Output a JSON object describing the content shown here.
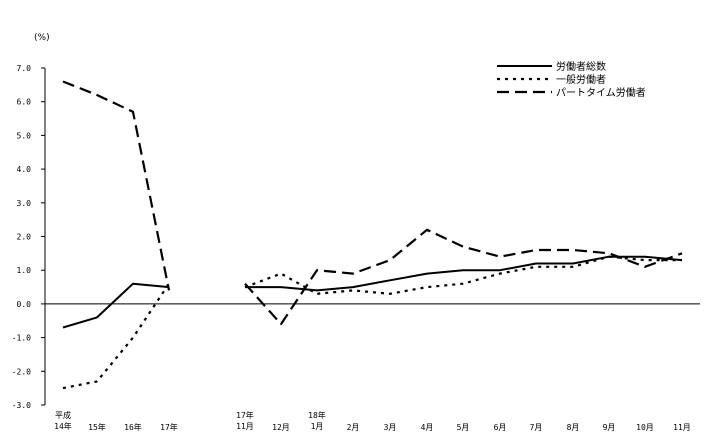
{
  "chart_data": {
    "type": "line",
    "title": "",
    "xlabel": "",
    "ylabel": "(%)",
    "ylim": [
      -3.0,
      7.0
    ],
    "y_ticks": [
      "7.0",
      "6.0",
      "5.0",
      "4.0",
      "3.0",
      "2.0",
      "1.0",
      "0.0",
      "-1.0",
      "-2.0",
      "-3.0"
    ],
    "legend_position": "top-right",
    "categories": [
      [
        "平成",
        "14年"
      ],
      [
        "15年"
      ],
      [
        "16年"
      ],
      [
        "17年"
      ],
      [
        "17年",
        "11月"
      ],
      [
        "12月"
      ],
      [
        "18年",
        "1月"
      ],
      [
        "2月"
      ],
      [
        "3月"
      ],
      [
        "4月"
      ],
      [
        "5月"
      ],
      [
        "6月"
      ],
      [
        "7月"
      ],
      [
        "8月"
      ],
      [
        "9月"
      ],
      [
        "10月"
      ],
      [
        "11月"
      ]
    ],
    "series": [
      {
        "name": "労働者総数",
        "style": "solid",
        "annual": [
          -0.7,
          -0.4,
          0.6,
          0.5
        ],
        "monthly": [
          0.5,
          0.5,
          0.4,
          0.5,
          0.7,
          0.9,
          1.0,
          1.0,
          1.2,
          1.2,
          1.4,
          1.4,
          1.3
        ]
      },
      {
        "name": "一般労働者",
        "style": "dotted",
        "annual": [
          -2.5,
          -2.3,
          -1.0,
          0.6
        ],
        "monthly": [
          0.5,
          0.9,
          0.3,
          0.4,
          0.3,
          0.5,
          0.6,
          0.9,
          1.1,
          1.1,
          1.4,
          1.3,
          1.3
        ]
      },
      {
        "name": "パートタイム労働者",
        "style": "dashed",
        "annual": [
          6.6,
          6.2,
          5.7,
          0.4
        ],
        "monthly": [
          0.6,
          -0.6,
          1.0,
          0.9,
          1.3,
          2.2,
          1.7,
          1.4,
          1.6,
          1.6,
          1.5,
          1.1,
          1.5
        ]
      }
    ]
  }
}
